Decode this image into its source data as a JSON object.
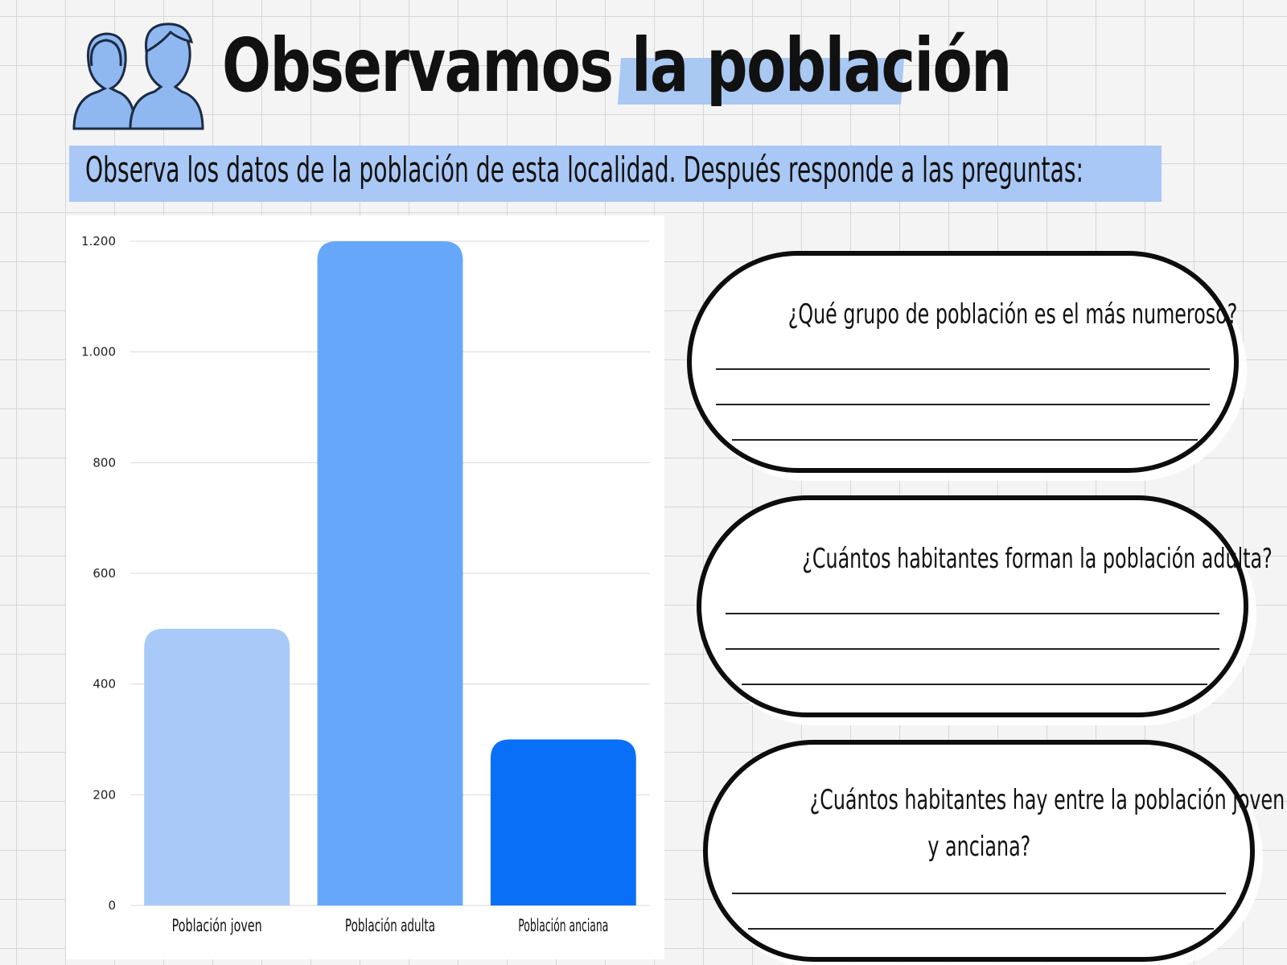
{
  "header": {
    "title": "Observamos la población",
    "icon": "people-icon",
    "accent_color": "#a9c8f2"
  },
  "instruction": "Observa los datos de la población de esta localidad. Después responde a las preguntas:",
  "chart_data": {
    "type": "bar",
    "categories": [
      "Población joven",
      "Población adulta",
      "Población anciana"
    ],
    "values": [
      500,
      1200,
      300
    ],
    "colors": [
      "#a9c9f9",
      "#66a7fa",
      "#0a6ff7"
    ],
    "ylim": [
      0,
      1200
    ],
    "yticks": [
      0,
      200,
      400,
      600,
      800,
      1000,
      1200
    ],
    "ytick_labels": [
      "0",
      "200",
      "400",
      "600",
      "800",
      "1.000",
      "1.200"
    ],
    "grid": true,
    "title": "",
    "xlabel": "",
    "ylabel": ""
  },
  "questions": [
    {
      "text_lines": [
        "¿Qué grupo de población es el más numeroso?"
      ],
      "answer_lines": 3
    },
    {
      "text_lines": [
        "¿Cuántos habitantes forman la población adulta?"
      ],
      "answer_lines": 3
    },
    {
      "text_lines": [
        "¿Cuántos habitantes hay entre la población joven",
        "y anciana?"
      ],
      "answer_lines": 2
    }
  ]
}
